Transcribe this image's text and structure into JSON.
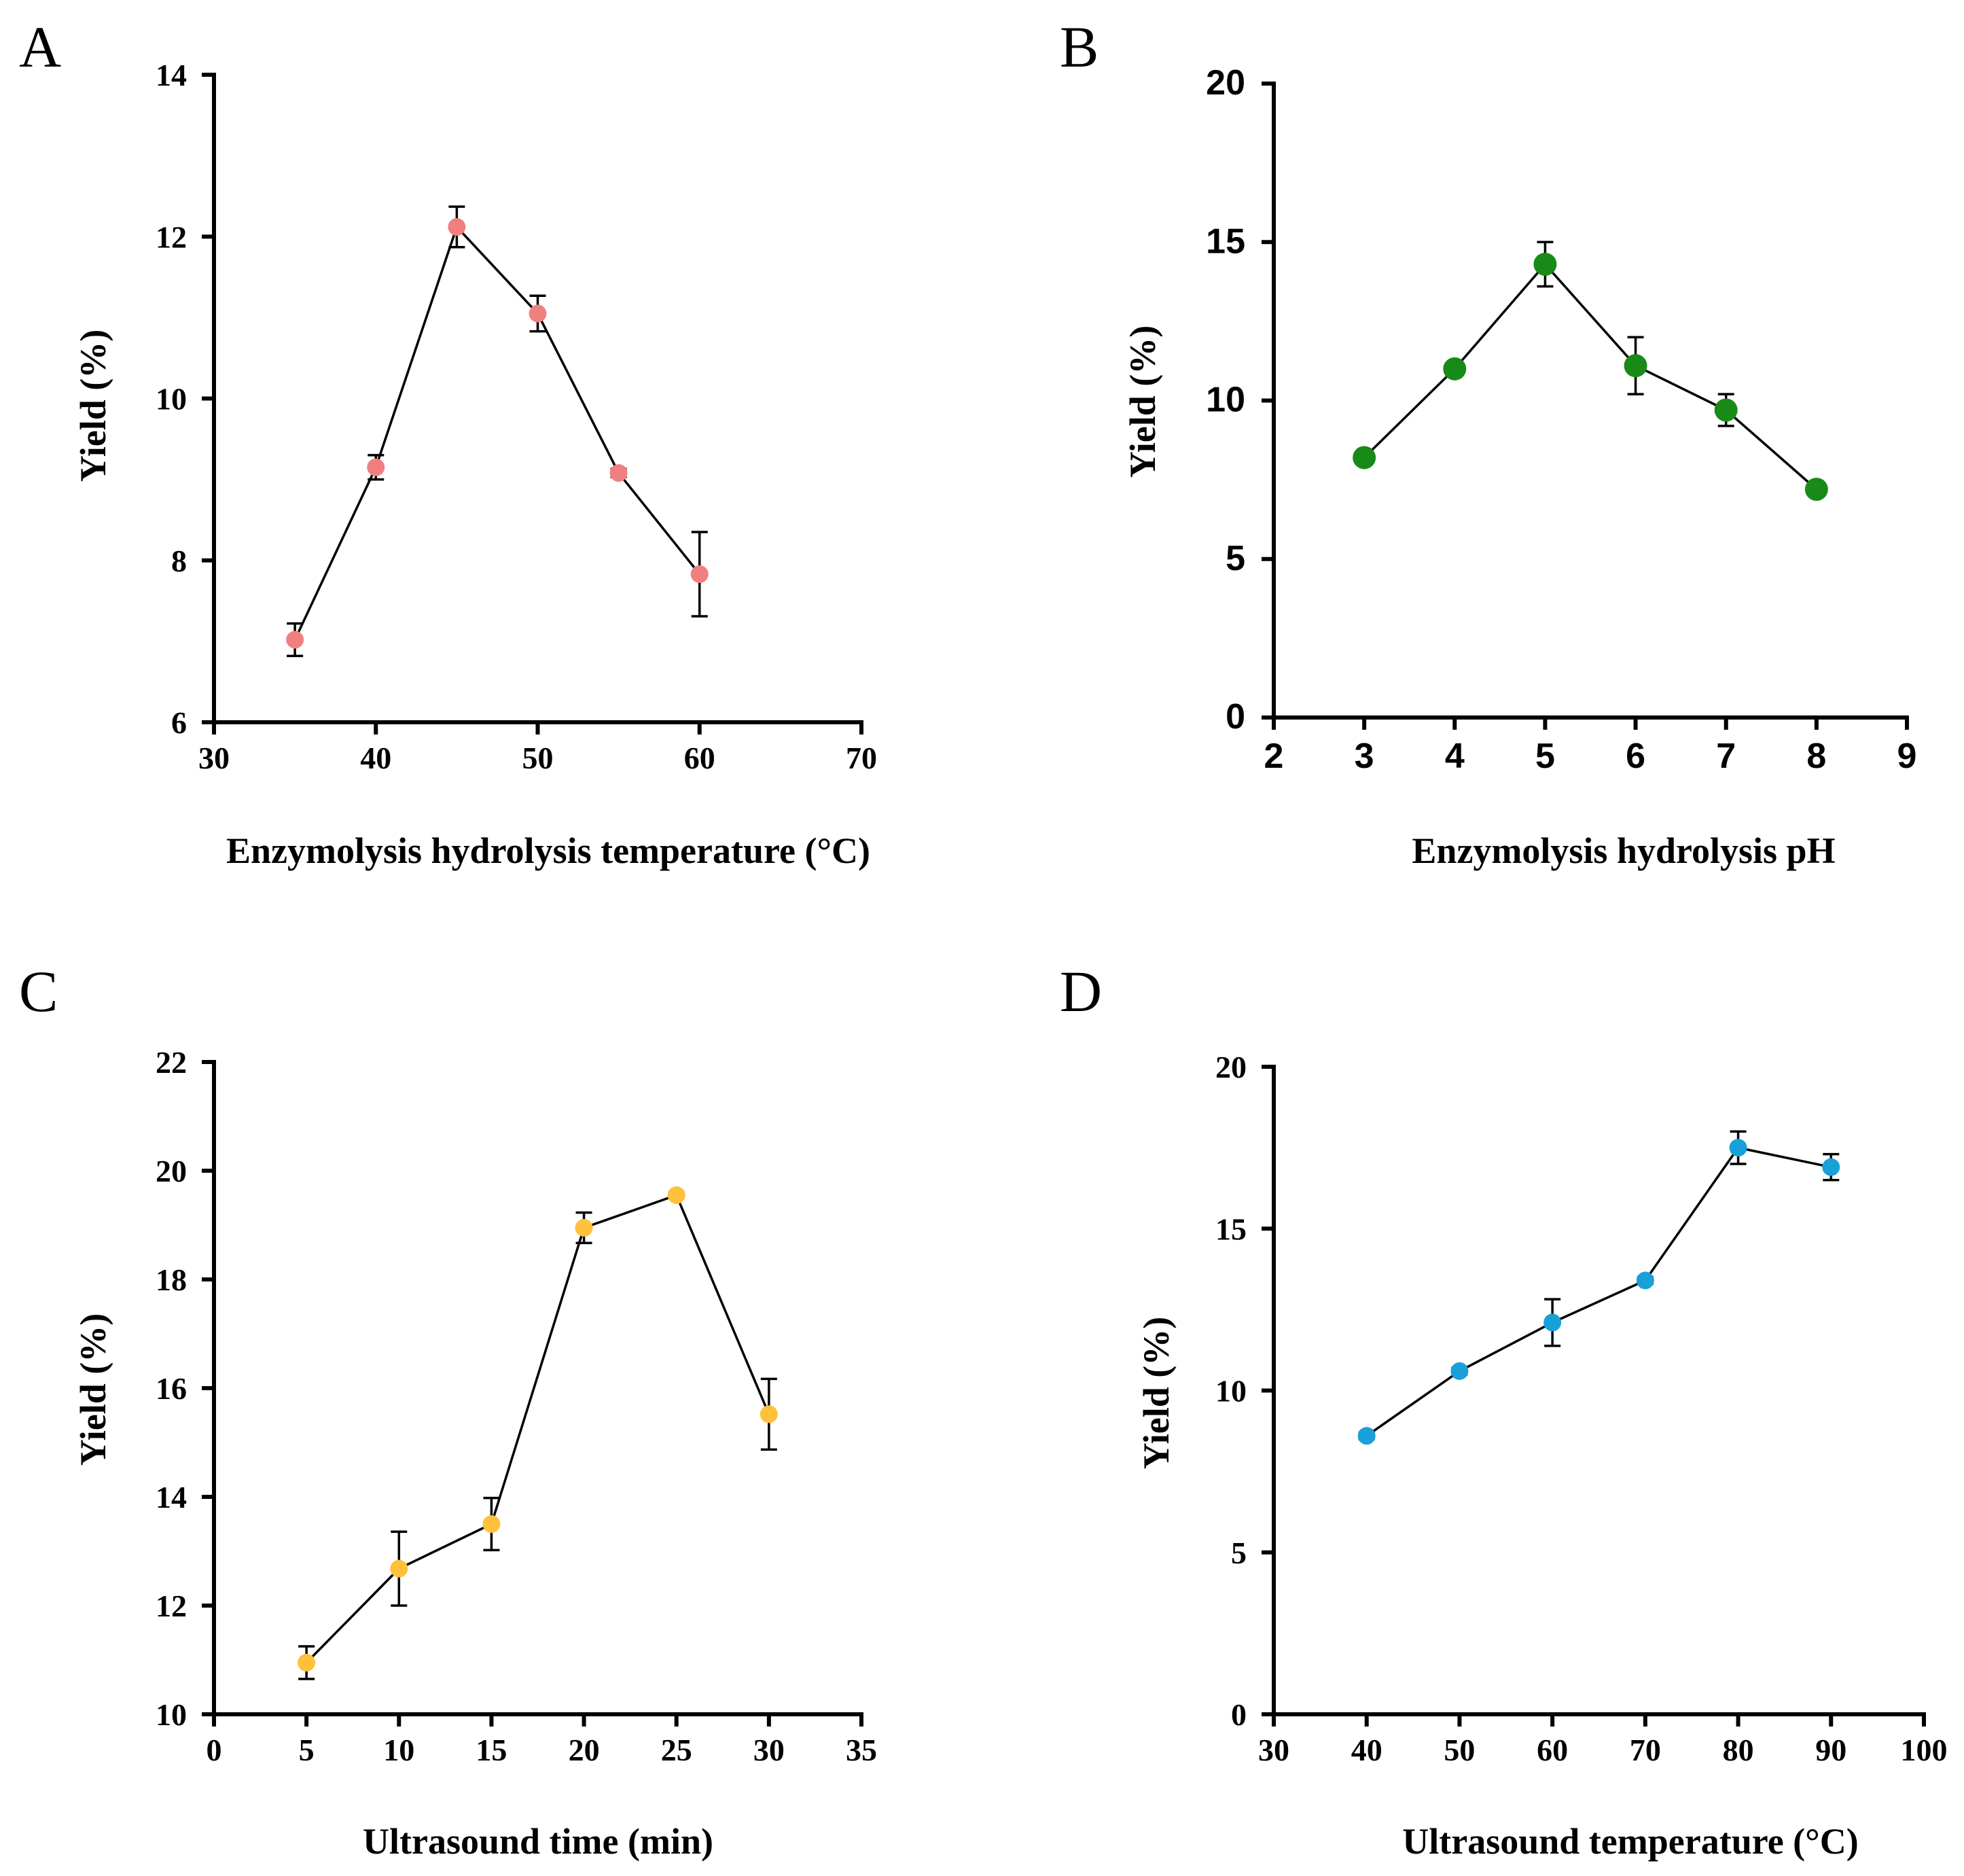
{
  "chart_data": [
    {
      "panel": "A",
      "type": "line",
      "xlabel": "Enzymolysis hydrolysis temperature (°C)",
      "ylabel": "Yield (%)",
      "xlim": [
        30,
        70
      ],
      "ylim": [
        6,
        14
      ],
      "xticks": [
        30,
        40,
        50,
        60,
        70
      ],
      "yticks": [
        6,
        8,
        10,
        12,
        14
      ],
      "x": [
        35,
        40,
        45,
        50,
        55,
        60
      ],
      "values": [
        7.02,
        9.15,
        12.12,
        11.05,
        9.08,
        7.83
      ],
      "errors": [
        0.2,
        0.15,
        0.25,
        0.22,
        0.05,
        0.52
      ],
      "color": "#f08080"
    },
    {
      "panel": "B",
      "type": "line",
      "xlabel": "Enzymolysis hydrolysis pH",
      "ylabel": "Yield (%)",
      "xlim": [
        2,
        9
      ],
      "ylim": [
        0,
        20
      ],
      "xticks": [
        2,
        3,
        4,
        5,
        6,
        7,
        8,
        9
      ],
      "yticks": [
        0,
        5,
        10,
        15,
        20
      ],
      "x": [
        3,
        4,
        5,
        6,
        7,
        8
      ],
      "values": [
        8.2,
        11.0,
        14.3,
        11.1,
        9.7,
        7.2
      ],
      "errors": [
        0.1,
        0.15,
        0.7,
        0.9,
        0.5,
        0.1
      ],
      "color": "#188a18"
    },
    {
      "panel": "C",
      "type": "line",
      "xlabel": "Ultrasound time (min)",
      "ylabel": "Yield (%)",
      "xlim": [
        0,
        35
      ],
      "ylim": [
        10,
        22
      ],
      "xticks": [
        0,
        5,
        10,
        15,
        20,
        25,
        30,
        35
      ],
      "yticks": [
        10,
        12,
        14,
        16,
        18,
        20,
        22
      ],
      "x": [
        5,
        10,
        15,
        20,
        25,
        30
      ],
      "values": [
        10.95,
        12.68,
        13.5,
        18.95,
        19.55,
        15.52
      ],
      "errors": [
        0.3,
        0.68,
        0.48,
        0.28,
        0.05,
        0.65
      ],
      "color": "#ffc03c"
    },
    {
      "panel": "D",
      "type": "line",
      "xlabel": "Ultrasound temperature (°C)",
      "ylabel": "Yield (%)",
      "xlim": [
        30,
        100
      ],
      "ylim": [
        0,
        20
      ],
      "xticks": [
        30,
        40,
        50,
        60,
        70,
        80,
        90,
        100
      ],
      "yticks": [
        0,
        5,
        10,
        15,
        20
      ],
      "x": [
        40,
        50,
        60,
        70,
        80,
        90
      ],
      "values": [
        8.6,
        10.6,
        12.1,
        13.4,
        17.5,
        16.9
      ],
      "errors": [
        0.1,
        0.1,
        0.72,
        0.1,
        0.5,
        0.4
      ],
      "color": "#1aa0d8"
    }
  ]
}
